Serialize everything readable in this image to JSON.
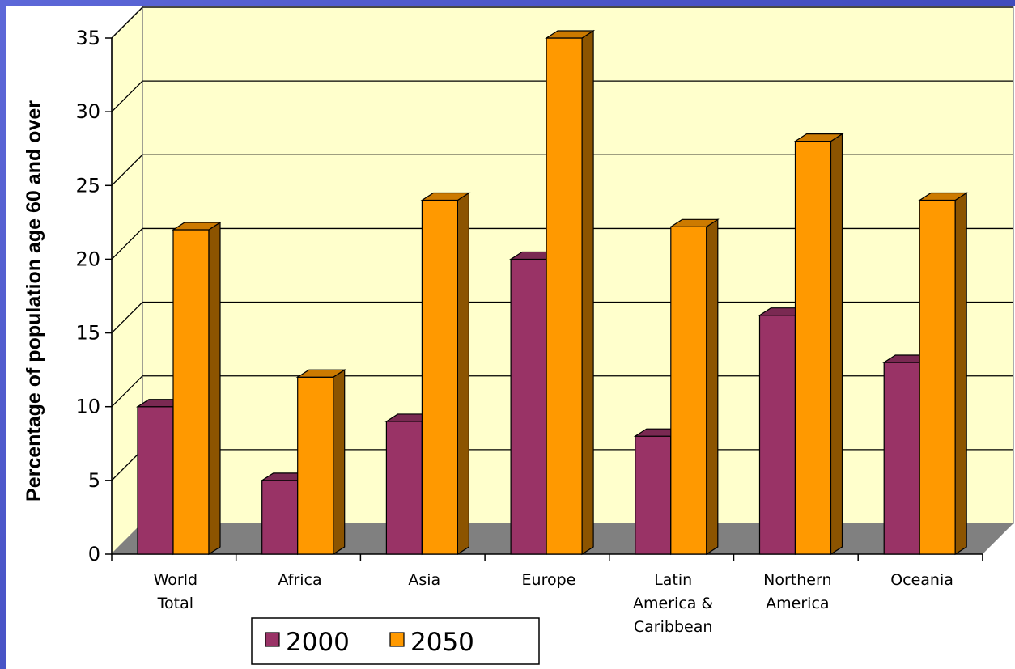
{
  "chart_data": {
    "type": "bar",
    "title": "",
    "xlabel": "",
    "ylabel": "Percentage of population age 60 and over",
    "ylim": [
      0,
      35
    ],
    "yticks": [
      0,
      5,
      10,
      15,
      20,
      25,
      30,
      35
    ],
    "grid": true,
    "legend_position": "bottom-left",
    "categories": [
      [
        "World",
        "Total"
      ],
      [
        "Africa"
      ],
      [
        "Asia"
      ],
      [
        "Europe"
      ],
      [
        "Latin",
        "America &",
        "Caribbean"
      ],
      [
        "Northern",
        "America"
      ],
      [
        "Oceania"
      ]
    ],
    "series": [
      {
        "name": "2000",
        "color": "#993366",
        "values": [
          10,
          5,
          9,
          20,
          8,
          16.2,
          13
        ]
      },
      {
        "name": "2050",
        "color": "#ff9900",
        "values": [
          22,
          12,
          24,
          35,
          22.2,
          28,
          24
        ]
      }
    ],
    "wall_color": "#ffffcc",
    "floor_color": "#808080"
  }
}
